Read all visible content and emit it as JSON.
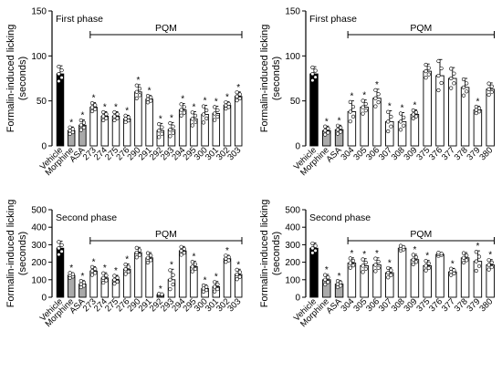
{
  "chart_data": [
    {
      "type": "bar",
      "panel_title": "First phase",
      "ylabel": "Formalin-induced licking (seconds)",
      "ylabel_lines": [
        "Formalin-induced licking",
        "(seconds)"
      ],
      "ylim": [
        0,
        150
      ],
      "yticks": [
        0,
        50,
        100,
        150
      ],
      "bracket_label": "PQM",
      "bracket_from": "273",
      "bracket_to": "303",
      "categories": [
        "Vehicle",
        "Morphine",
        "ASA",
        "273",
        "274",
        "275",
        "276",
        "290",
        "291",
        "292",
        "293",
        "294",
        "295",
        "300",
        "301",
        "302",
        "303"
      ],
      "values": [
        80,
        17,
        23,
        43,
        33,
        33,
        30,
        60,
        52,
        17,
        18,
        40,
        30,
        35,
        36,
        45,
        55
      ],
      "errors": [
        9,
        4,
        6,
        5,
        5,
        5,
        4,
        8,
        4,
        8,
        8,
        7,
        8,
        10,
        8,
        4,
        5
      ],
      "significant": [
        false,
        true,
        true,
        true,
        true,
        true,
        true,
        true,
        true,
        true,
        true,
        true,
        true,
        true,
        true,
        true,
        true
      ],
      "bar_colors": [
        "#000000",
        "#aaaaaa",
        "#aaaaaa",
        "#ffffff",
        "#ffffff",
        "#ffffff",
        "#ffffff",
        "#ffffff",
        "#ffffff",
        "#ffffff",
        "#ffffff",
        "#ffffff",
        "#ffffff",
        "#ffffff",
        "#ffffff",
        "#ffffff",
        "#ffffff"
      ]
    },
    {
      "type": "bar",
      "panel_title": "First phase",
      "ylabel": "Formalin-induced licking (seconds)",
      "ylabel_lines": [
        "Formalin-induced licking",
        "(seconds)"
      ],
      "ylim": [
        0,
        150
      ],
      "yticks": [
        0,
        50,
        100,
        150
      ],
      "bracket_label": "PQM",
      "bracket_from": "304",
      "bracket_to": "380",
      "categories": [
        "Vehicle",
        "Morphine",
        "ASA",
        "304",
        "305",
        "306",
        "307",
        "308",
        "309",
        "375",
        "376",
        "377",
        "378",
        "379",
        "380"
      ],
      "values": [
        80,
        17,
        18,
        38,
        43,
        53,
        27,
        27,
        35,
        83,
        78,
        75,
        65,
        40,
        63
      ],
      "errors": [
        8,
        5,
        5,
        12,
        8,
        10,
        12,
        10,
        5,
        8,
        18,
        12,
        10,
        4,
        7
      ],
      "significant": [
        false,
        true,
        true,
        true,
        true,
        true,
        true,
        true,
        true,
        false,
        false,
        false,
        false,
        true,
        false
      ],
      "bar_colors": [
        "#000000",
        "#aaaaaa",
        "#aaaaaa",
        "#ffffff",
        "#ffffff",
        "#ffffff",
        "#ffffff",
        "#ffffff",
        "#ffffff",
        "#ffffff",
        "#ffffff",
        "#ffffff",
        "#ffffff",
        "#ffffff",
        "#ffffff"
      ]
    },
    {
      "type": "bar",
      "panel_title": "Second phase",
      "ylabel": "Formalin-induced licking (seconds)",
      "ylabel_lines": [
        "Formalin-induced licking",
        "(seconds)"
      ],
      "ylim": [
        0,
        500
      ],
      "yticks": [
        0,
        100,
        200,
        300,
        400,
        500
      ],
      "bracket_label": "PQM",
      "bracket_from": "273",
      "bracket_to": "303",
      "categories": [
        "Vehicle",
        "Morphine",
        "ASA",
        "273",
        "274",
        "275",
        "276",
        "290",
        "291",
        "292",
        "293",
        "294",
        "295",
        "300",
        "301",
        "302",
        "303"
      ],
      "values": [
        280,
        125,
        75,
        150,
        110,
        100,
        160,
        255,
        225,
        15,
        100,
        265,
        175,
        50,
        60,
        220,
        130
      ],
      "errors": [
        40,
        15,
        20,
        25,
        30,
        25,
        30,
        30,
        30,
        5,
        60,
        25,
        30,
        20,
        30,
        20,
        30
      ],
      "significant": [
        false,
        true,
        true,
        true,
        true,
        true,
        true,
        false,
        false,
        true,
        true,
        false,
        true,
        true,
        true,
        true,
        true
      ],
      "bar_colors": [
        "#000000",
        "#aaaaaa",
        "#aaaaaa",
        "#ffffff",
        "#ffffff",
        "#ffffff",
        "#ffffff",
        "#ffffff",
        "#ffffff",
        "#ffffff",
        "#ffffff",
        "#ffffff",
        "#ffffff",
        "#ffffff",
        "#ffffff",
        "#ffffff",
        "#ffffff"
      ]
    },
    {
      "type": "bar",
      "panel_title": "Second phase",
      "ylabel": "Formalin-induced licking (seconds)",
      "ylabel_lines": [
        "Formalin-induced licking",
        "(seconds)"
      ],
      "ylim": [
        0,
        500
      ],
      "yticks": [
        0,
        100,
        200,
        300,
        400,
        500
      ],
      "bracket_label": "PQM",
      "bracket_from": "304",
      "bracket_to": "380",
      "categories": [
        "Vehicle",
        "Morphine",
        "ASA",
        "304",
        "305",
        "306",
        "307",
        "308",
        "309",
        "375",
        "376",
        "377",
        "378",
        "379",
        "380"
      ],
      "values": [
        280,
        100,
        75,
        195,
        180,
        185,
        140,
        280,
        215,
        180,
        245,
        145,
        225,
        205,
        185
      ],
      "errors": [
        30,
        30,
        20,
        30,
        40,
        40,
        30,
        15,
        30,
        30,
        10,
        20,
        30,
        60,
        30
      ],
      "significant": [
        false,
        true,
        true,
        true,
        true,
        true,
        true,
        false,
        true,
        true,
        false,
        true,
        false,
        true,
        true
      ],
      "bar_colors": [
        "#000000",
        "#aaaaaa",
        "#aaaaaa",
        "#ffffff",
        "#ffffff",
        "#ffffff",
        "#ffffff",
        "#ffffff",
        "#ffffff",
        "#ffffff",
        "#ffffff",
        "#ffffff",
        "#ffffff",
        "#ffffff",
        "#ffffff"
      ]
    }
  ],
  "significance_symbol": "*"
}
